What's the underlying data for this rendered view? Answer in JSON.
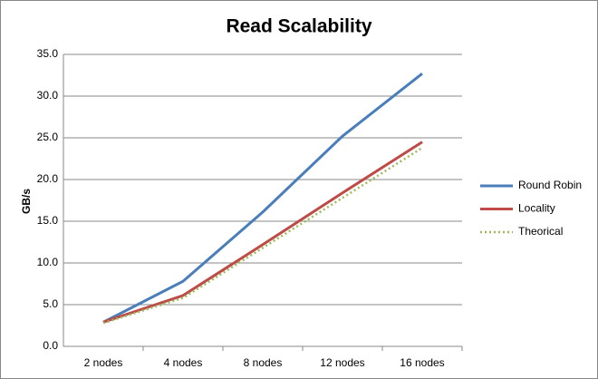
{
  "chart_data": {
    "type": "line",
    "title": "Read Scalability",
    "y_label": "GB/s",
    "categories": [
      "2 nodes",
      "4 nodes",
      "8 nodes",
      "12 nodes",
      "16 nodes"
    ],
    "series": [
      {
        "name": "Round Robin",
        "color": "#4a7ebb",
        "values": [
          2.9,
          7.8,
          16.1,
          25.2,
          32.7
        ]
      },
      {
        "name": "Locality",
        "color": "#be4b48",
        "values": [
          2.9,
          6.1,
          12.2,
          18.4,
          24.5
        ]
      },
      {
        "name": "Theorical",
        "color": "#9bbb59",
        "values": [
          2.8,
          5.8,
          11.8,
          17.8,
          23.8
        ],
        "dashed": true
      }
    ],
    "ylim": [
      0,
      35
    ],
    "yticks": [
      {
        "value": 0,
        "label": "0.0"
      },
      {
        "value": 5,
        "label": "5.0"
      },
      {
        "value": 10,
        "label": "10.0"
      },
      {
        "value": 15,
        "label": "15.0"
      },
      {
        "value": 20,
        "label": "20.0"
      },
      {
        "value": 25,
        "label": "25.0"
      },
      {
        "value": 30,
        "label": "30.0"
      },
      {
        "value": 35,
        "label": "35.0"
      }
    ],
    "grid": true,
    "legend": "right"
  }
}
